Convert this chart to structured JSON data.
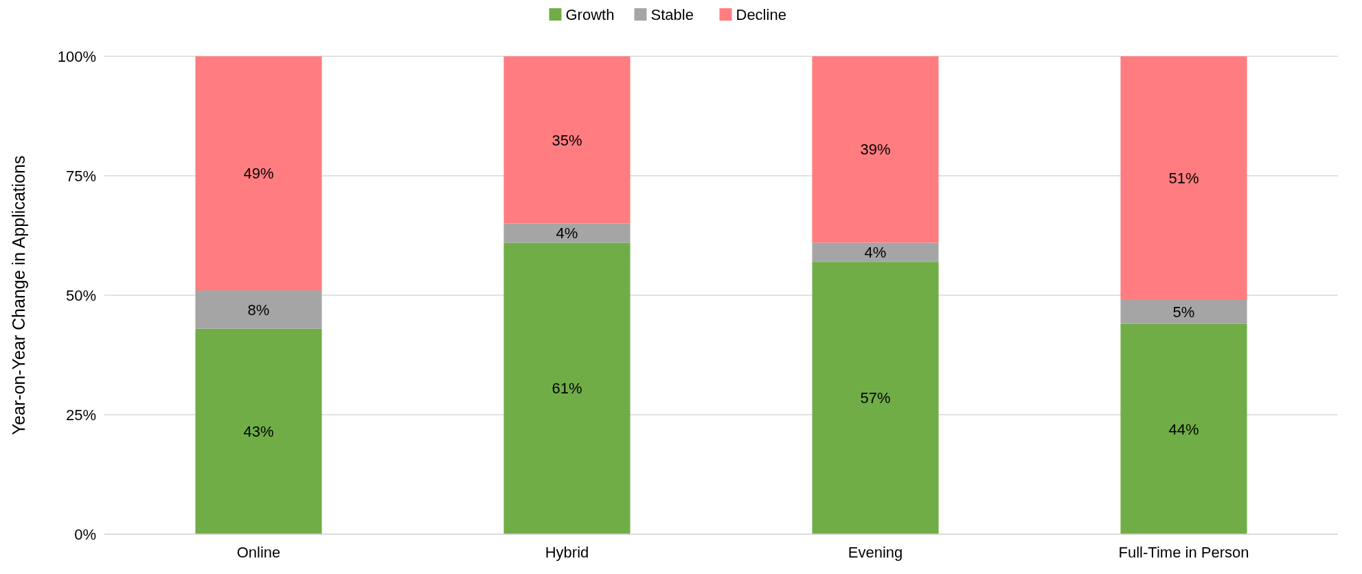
{
  "chart_data": {
    "type": "bar",
    "stacked": true,
    "ylabel": "Year-on-Year Change in Applications",
    "categories": [
      "Online",
      "Hybrid",
      "Evening",
      "Full-Time in Person"
    ],
    "series": [
      {
        "name": "Growth",
        "color": "#70ad47",
        "values": [
          43,
          61,
          57,
          44
        ],
        "value_labels": [
          "43%",
          "61%",
          "57%",
          "44%"
        ]
      },
      {
        "name": "Stable",
        "color": "#a5a5a5",
        "values": [
          8,
          4,
          4,
          5
        ],
        "value_labels": [
          "8%",
          "4%",
          "4%",
          "5%"
        ]
      },
      {
        "name": "Decline",
        "color": "#ff7c80",
        "values": [
          49,
          35,
          39,
          51
        ],
        "value_labels": [
          "49%",
          "35%",
          "39%",
          "51%"
        ]
      }
    ],
    "ylim": [
      0,
      100
    ],
    "yticks": [
      {
        "value": 0,
        "label": "0%"
      },
      {
        "value": 25,
        "label": "25%"
      },
      {
        "value": 50,
        "label": "50%"
      },
      {
        "value": 75,
        "label": "75%"
      },
      {
        "value": 100,
        "label": "100%"
      }
    ],
    "grid": "y",
    "legend": "top"
  }
}
